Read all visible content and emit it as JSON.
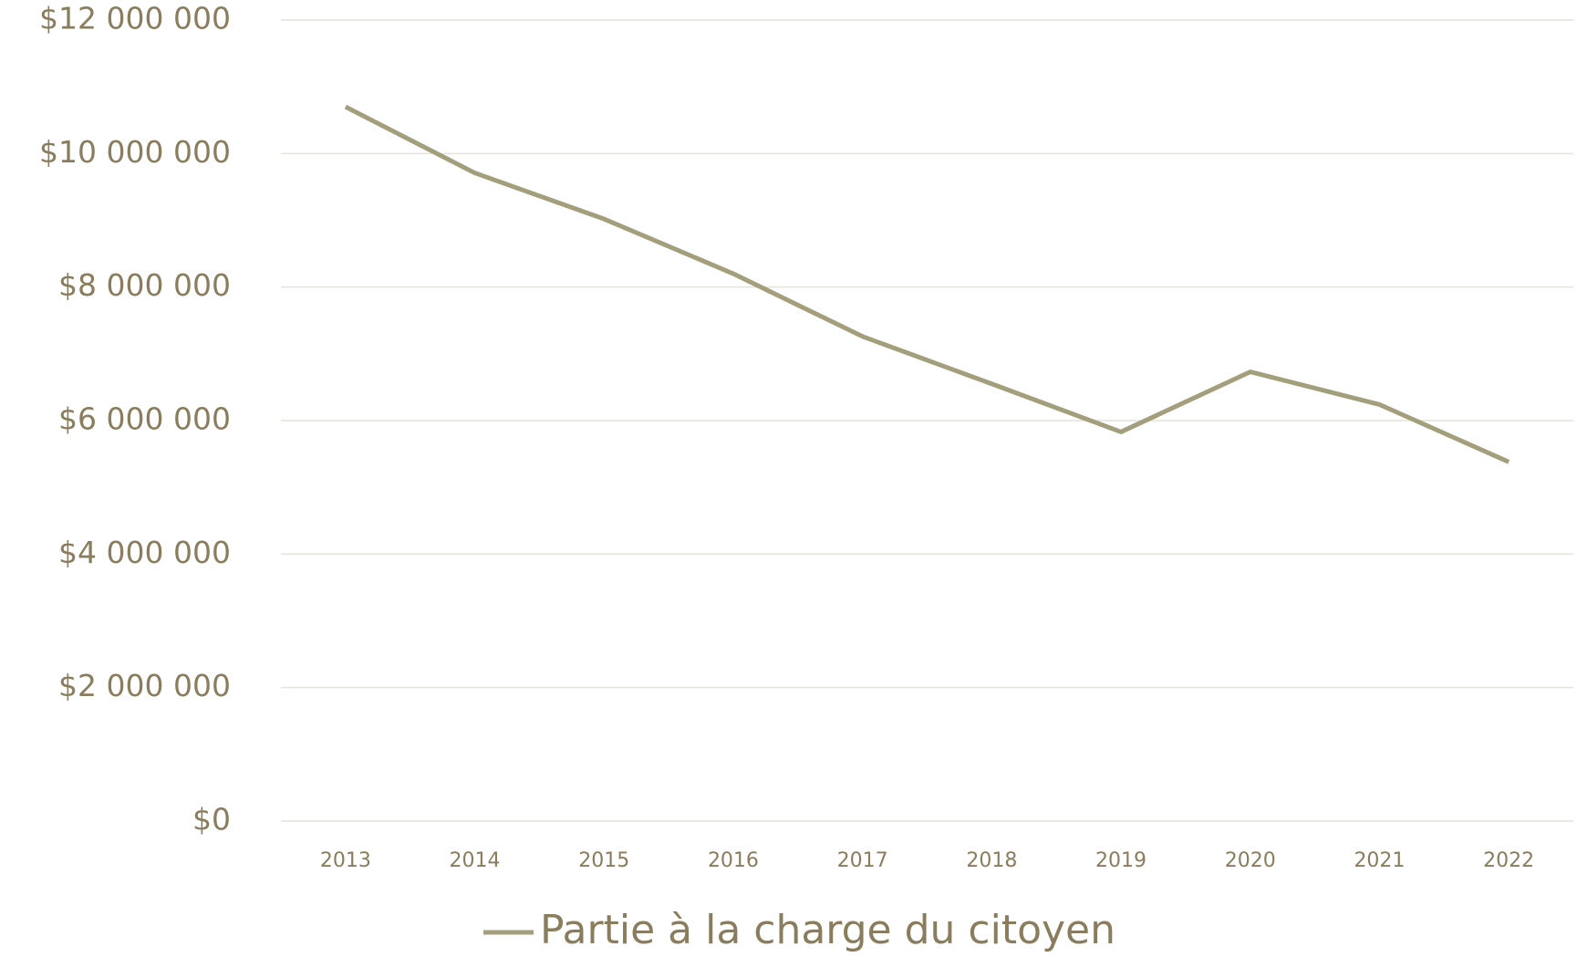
{
  "chart_data": {
    "type": "line",
    "categories": [
      "2013",
      "2014",
      "2015",
      "2016",
      "2017",
      "2018",
      "2019",
      "2020",
      "2021",
      "2022"
    ],
    "series": [
      {
        "name": "Partie à la charge du citoyen",
        "color": "#a39e7b",
        "values": [
          10700000,
          9710000,
          9020000,
          8200000,
          7260000,
          6550000,
          5830000,
          6730000,
          6240000,
          5380000
        ]
      }
    ],
    "ylim": [
      0,
      12000000
    ],
    "yticks": [
      {
        "value": 0,
        "label": "$0"
      },
      {
        "value": 2000000,
        "label": "$2 000 000"
      },
      {
        "value": 4000000,
        "label": "$4 000 000"
      },
      {
        "value": 6000000,
        "label": "$6 000 000"
      },
      {
        "value": 8000000,
        "label": "$8 000 000"
      },
      {
        "value": 10000000,
        "label": "$10 000 000"
      },
      {
        "value": 12000000,
        "label": "$12 000 000"
      }
    ],
    "grid": true,
    "legend": "bottom"
  }
}
